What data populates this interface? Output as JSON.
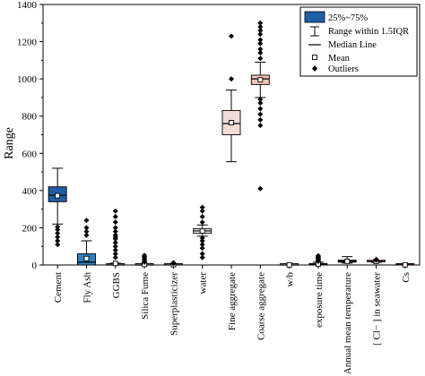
{
  "chart_data": {
    "type": "box",
    "title": "",
    "xlabel": "",
    "ylabel": "Range",
    "ylim": [
      0,
      1400
    ],
    "yticks": [
      0,
      200,
      400,
      600,
      800,
      1000,
      1200,
      1400
    ],
    "grid": false,
    "legend_position": "top-right",
    "legend": {
      "box": "25%~75%",
      "whisker": "Range within 1.5IQR",
      "median": "Median Line",
      "mean": "Mean",
      "outliers": "Outliers"
    },
    "categories": [
      "Cement",
      "Fly Ash",
      "GGBS",
      "Silica Fume",
      "Superplasticizer",
      "water",
      "Fine aggregate",
      "Coarse aggregate",
      "w/b",
      "exposure time",
      "Annual mean temperature",
      "[ Cl− ] in seawater",
      "Cs"
    ],
    "series": [
      {
        "category": "Cement",
        "whisker_low": 220,
        "q1": 340,
        "median": 375,
        "q3": 420,
        "whisker_high": 520,
        "mean": 372,
        "color": "#1f5fa8",
        "outliers": [
          110,
          130,
          150,
          170,
          190,
          205
        ]
      },
      {
        "category": "Fly Ash",
        "whisker_low": 0,
        "q1": 0,
        "median": 15,
        "q3": 60,
        "whisker_high": 130,
        "mean": 35,
        "color": "#2f7fc2",
        "outliers": [
          160,
          180,
          200,
          240
        ]
      },
      {
        "category": "GGBS",
        "whisker_low": 0,
        "q1": 0,
        "median": 0,
        "q3": 5,
        "whisker_high": 10,
        "mean": 8,
        "color": "#6baed6",
        "outliers": [
          40,
          60,
          80,
          100,
          120,
          140,
          150,
          160,
          180,
          200,
          230,
          260,
          290
        ]
      },
      {
        "category": "Silica Fume",
        "whisker_low": 0,
        "q1": 0,
        "median": 0,
        "q3": 2,
        "whisker_high": 5,
        "mean": 3,
        "color": "#9ecae1",
        "outliers": [
          15,
          22,
          30,
          38,
          45,
          52
        ]
      },
      {
        "category": "Superplasticizer",
        "whisker_low": 0,
        "q1": 0,
        "median": 1,
        "q3": 3,
        "whisker_high": 6,
        "mean": 2,
        "color": "#c6dbef",
        "outliers": [
          8,
          12
        ]
      },
      {
        "category": "water",
        "whisker_low": 155,
        "q1": 170,
        "median": 183,
        "q3": 195,
        "whisker_high": 215,
        "mean": 183,
        "color": "#dbe9f6",
        "outliers": [
          40,
          60,
          90,
          110,
          130,
          145,
          230,
          260,
          290,
          310
        ]
      },
      {
        "category": "Fine aggregate",
        "whisker_low": 555,
        "q1": 700,
        "median": 760,
        "q3": 830,
        "whisker_high": 940,
        "mean": 765,
        "color": "#f4dcd6",
        "outliers": [
          1000,
          1230
        ]
      },
      {
        "category": "Coarse aggregate",
        "whisker_low": 900,
        "q1": 970,
        "median": 1000,
        "q3": 1020,
        "whisker_high": 1090,
        "mean": 995,
        "color": "#f4c4b3",
        "outliers": [
          410,
          750,
          780,
          810,
          840,
          870,
          890,
          1110,
          1140,
          1160,
          1190,
          1210,
          1240,
          1260,
          1280,
          1300
        ]
      },
      {
        "category": "w/b",
        "whisker_low": 0,
        "q1": 0,
        "median": 0,
        "q3": 1,
        "whisker_high": 1,
        "mean": 0.5,
        "color": "#f6b09b",
        "outliers": []
      },
      {
        "category": "exposure time",
        "whisker_low": 0,
        "q1": 0,
        "median": 3,
        "q3": 8,
        "whisker_high": 15,
        "mean": 5,
        "color": "#ef8a70",
        "outliers": [
          20,
          25,
          30,
          35,
          40,
          45,
          50
        ]
      },
      {
        "category": "Annual mean temperature",
        "whisker_low": 10,
        "q1": 15,
        "median": 20,
        "q3": 26,
        "whisker_high": 45,
        "mean": 20,
        "color": "#d6604d",
        "outliers": []
      },
      {
        "category": "[ Cl− ] in seawater",
        "whisker_low": 14,
        "q1": 18,
        "median": 19,
        "q3": 20,
        "whisker_high": 24,
        "mean": 19,
        "color": "#c44e52",
        "outliers": [
          26,
          30
        ]
      },
      {
        "category": "Cs",
        "whisker_low": 0,
        "q1": 0,
        "median": 1,
        "q3": 2,
        "whisker_high": 4,
        "mean": 1,
        "color": "#b2182b",
        "outliers": []
      }
    ]
  }
}
